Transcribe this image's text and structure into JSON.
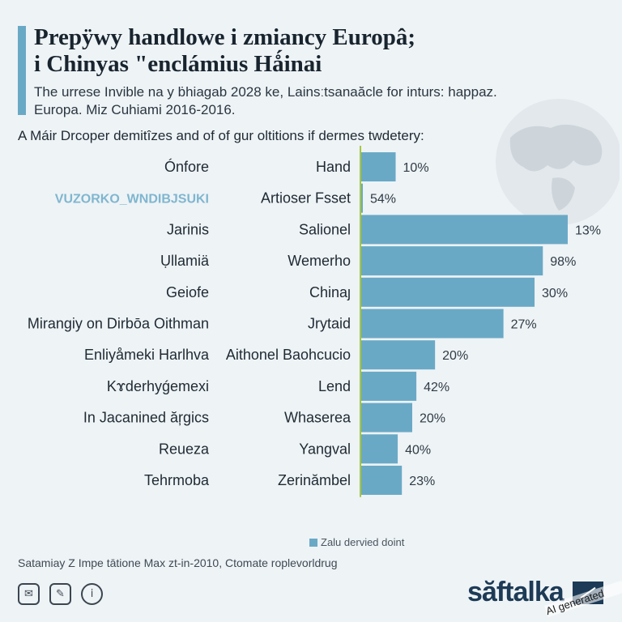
{
  "header": {
    "title_line1": "Prepÿwy handlowe i zmiancy Europâ;",
    "title_line2": "i Chinyas \"enclámius Hǻinai",
    "subtitle_line1": "The urrese Invible na y ḃhiagab 2028 ke, Lainsːtsanaăcle for inturs: happaz.",
    "subtitle_line2": "Europa. Miz Cuhiami 2016-2016."
  },
  "chart_heading": "A Máir Drcoper demitîzes and of of gur oltitions if dermes twdetery:",
  "outer_labels": [
    "Ónfore",
    "VUZORKO_WNDIBJSUKI",
    "Jarinis",
    "Ụllamiä",
    "Geiofe",
    "Mirangiy on Dirbōa  Oithman",
    "Enliyåmeki Harlhva",
    "Kɤderhyǵemexi",
    "In Jacanined ăŗgics",
    "Reueza",
    "Tehrmoba"
  ],
  "chart_data": {
    "type": "bar",
    "orientation": "horizontal",
    "categories": [
      "Hand",
      "Artioser Fsset",
      "Salionel",
      "Wemerho",
      "Chinaȷ",
      "Jrytaid",
      "Aithonel Baohcucio",
      "Lend",
      "Whaserea",
      "Yangval",
      "Zerinămbel"
    ],
    "value_labels": [
      "10%",
      "54%",
      "13%",
      "98%",
      "30%",
      "27%",
      "20%",
      "42%",
      "20%",
      "40%",
      "23%"
    ],
    "bar_fractions": [
      0.17,
      0.01,
      1.0,
      0.88,
      0.84,
      0.69,
      0.36,
      0.27,
      0.25,
      0.18,
      0.2
    ],
    "legend": "Zalu dervied doint"
  },
  "colors": {
    "bar": "#6aa9c6",
    "axis": "#a8c83a",
    "outer_label_highlight": "#7fb6cf"
  },
  "footer": {
    "source": "Satamiay Z Impe tātione Max zt-in-2010, Ctomate roplevorldrug",
    "share_icons": [
      "chat-icon",
      "pen-icon",
      "info-icon"
    ],
    "brand": "săftalka",
    "ai_tag": "AI generated"
  }
}
